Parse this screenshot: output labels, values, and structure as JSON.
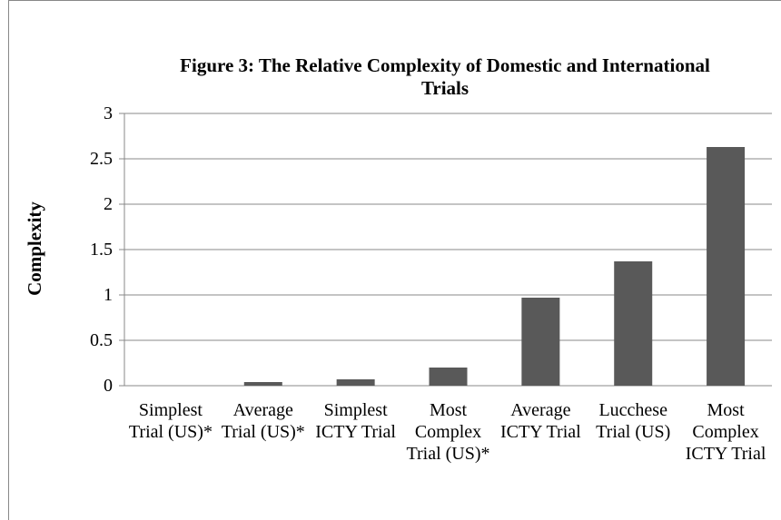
{
  "chart_data": {
    "type": "bar",
    "title": "Figure 3: The Relative Complexity of Domestic and International Trials",
    "y_label": "Complexity",
    "categories": [
      "Simplest Trial (US)*",
      "Average Trial (US)*",
      "Simplest ICTY Trial",
      "Most Complex Trial (US)*",
      "Average ICTY Trial",
      "Lucchese Trial (US)",
      "Most Complex ICTY Trial"
    ],
    "values": [
      0,
      0.04,
      0.07,
      0.2,
      0.97,
      1.37,
      2.63
    ],
    "color": "#595959",
    "ylim": [
      0,
      3
    ],
    "yticks": [
      0,
      0.5,
      1,
      1.5,
      2,
      2.5,
      3
    ],
    "grid": true
  }
}
